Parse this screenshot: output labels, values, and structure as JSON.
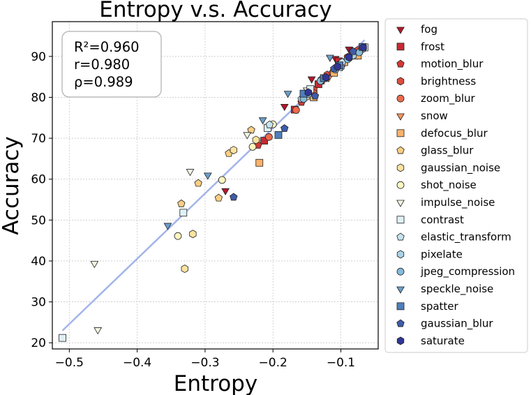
{
  "chart_data": {
    "type": "scatter",
    "title": "Entropy  v.s.  Accuracy",
    "xlabel": "Entropy",
    "ylabel": "Accuracy",
    "xlim": [
      -0.525,
      -0.045
    ],
    "ylim": [
      18.5,
      98.5
    ],
    "xticks": [
      -0.5,
      -0.4,
      -0.3,
      -0.2,
      -0.1
    ],
    "xtick_labels": [
      "−0.5",
      "−0.4",
      "−0.3",
      "−0.2",
      "−0.1"
    ],
    "yticks": [
      20,
      30,
      40,
      50,
      60,
      70,
      80,
      90
    ],
    "ytick_labels": [
      "20",
      "30",
      "40",
      "50",
      "60",
      "70",
      "80",
      "90"
    ],
    "grid": true,
    "fit_line": {
      "color": "#a2b4ea",
      "x": [
        -0.51,
        -0.065
      ],
      "y": [
        23.0,
        94.0
      ]
    },
    "stats": [
      "R²=0.960",
      "r=0.980",
      "ρ=0.989"
    ],
    "legend_position": "outside-right",
    "series": [
      {
        "name": "fog",
        "marker": "triangle-down",
        "color": "#b2182b",
        "points": [
          [
            -0.27,
            57.2
          ],
          [
            -0.183,
            77.8
          ],
          [
            -0.143,
            84.5
          ],
          [
            -0.108,
            89.5
          ],
          [
            -0.088,
            91.8
          ]
        ]
      },
      {
        "name": "frost",
        "marker": "square",
        "color": "#c62a32",
        "points": [
          [
            -0.213,
            69.4
          ],
          [
            -0.168,
            77.0
          ],
          [
            -0.133,
            83.2
          ],
          [
            -0.103,
            88.8
          ],
          [
            -0.083,
            91.0
          ]
        ]
      },
      {
        "name": "motion_blur",
        "marker": "pentagon",
        "color": "#d03a36",
        "points": [
          [
            -0.222,
            68.3
          ],
          [
            -0.158,
            78.8
          ],
          [
            -0.128,
            84.0
          ],
          [
            -0.098,
            88.4
          ],
          [
            -0.078,
            90.8
          ]
        ]
      },
      {
        "name": "brightness",
        "marker": "hexagon",
        "color": "#dd4f3d",
        "points": [
          [
            -0.14,
            81.8
          ],
          [
            -0.12,
            85.5
          ],
          [
            -0.1,
            88.2
          ],
          [
            -0.09,
            89.8
          ],
          [
            -0.075,
            91.5
          ]
        ]
      },
      {
        "name": "zoom_blur",
        "marker": "circle",
        "color": "#ec6b4d",
        "points": [
          [
            -0.206,
            70.3
          ],
          [
            -0.166,
            76.9
          ],
          [
            -0.14,
            81.0
          ],
          [
            -0.112,
            86.0
          ],
          [
            -0.088,
            89.6
          ]
        ]
      },
      {
        "name": "snow",
        "marker": "triangle-down",
        "color": "#f6955e",
        "points": [
          [
            -0.142,
            80.3
          ],
          [
            -0.118,
            84.8
          ],
          [
            -0.098,
            87.5
          ],
          [
            -0.076,
            90.3
          ]
        ]
      },
      {
        "name": "defocus_blur",
        "marker": "square",
        "color": "#f9b36b",
        "points": [
          [
            -0.22,
            64.0
          ],
          [
            -0.14,
            80.0
          ],
          [
            -0.11,
            86.0
          ],
          [
            -0.095,
            88.6
          ],
          [
            -0.075,
            90.2
          ]
        ]
      },
      {
        "name": "glass_blur",
        "marker": "pentagon",
        "color": "#fbce83",
        "points": [
          [
            -0.335,
            54.0
          ],
          [
            -0.31,
            59.0
          ],
          [
            -0.265,
            66.3
          ],
          [
            -0.232,
            72.0
          ],
          [
            -0.28,
            55.4
          ]
        ]
      },
      {
        "name": "gaussian_noise",
        "marker": "hexagon",
        "color": "#fde3a0",
        "points": [
          [
            -0.33,
            38.1
          ],
          [
            -0.318,
            46.6
          ],
          [
            -0.258,
            67.1
          ],
          [
            -0.225,
            69.6
          ],
          [
            -0.155,
            80.4
          ]
        ]
      },
      {
        "name": "shot_noise",
        "marker": "circle",
        "color": "#fef6c1",
        "points": [
          [
            -0.34,
            46.1
          ],
          [
            -0.275,
            59.8
          ],
          [
            -0.23,
            67.9
          ],
          [
            -0.2,
            73.4
          ],
          [
            -0.15,
            80.2
          ]
        ]
      },
      {
        "name": "impulse_noise",
        "marker": "triangle-down",
        "color": "#f3f8e2",
        "points": [
          [
            -0.463,
            39.4
          ],
          [
            -0.458,
            23.2
          ],
          [
            -0.322,
            61.9
          ],
          [
            -0.238,
            70.9
          ],
          [
            -0.15,
            81.8
          ]
        ]
      },
      {
        "name": "contrast",
        "marker": "square",
        "color": "#dff0f6",
        "points": [
          [
            -0.51,
            21.2
          ],
          [
            -0.332,
            51.8
          ],
          [
            -0.208,
            72.5
          ],
          [
            -0.145,
            82.0
          ],
          [
            -0.065,
            92.2
          ]
        ]
      },
      {
        "name": "elastic_transform",
        "marker": "pentagon",
        "color": "#c7e3ee",
        "points": [
          [
            -0.205,
            73.3
          ],
          [
            -0.158,
            79.6
          ],
          [
            -0.128,
            84.5
          ],
          [
            -0.098,
            88.6
          ],
          [
            -0.072,
            91.2
          ]
        ]
      },
      {
        "name": "pixelate",
        "marker": "hexagon",
        "color": "#a8d3e6",
        "points": [
          [
            -0.148,
            80.8
          ],
          [
            -0.122,
            84.8
          ],
          [
            -0.1,
            87.4
          ],
          [
            -0.082,
            90.2
          ],
          [
            -0.068,
            91.8
          ]
        ]
      },
      {
        "name": "jpeg_compression",
        "marker": "circle",
        "color": "#86bbdb",
        "points": [
          [
            -0.155,
            79.6
          ],
          [
            -0.13,
            84.0
          ],
          [
            -0.108,
            86.8
          ],
          [
            -0.09,
            89.3
          ],
          [
            -0.073,
            91.0
          ]
        ]
      },
      {
        "name": "speckle_noise",
        "marker": "triangle-down",
        "color": "#6a9fcc",
        "points": [
          [
            -0.355,
            48.7
          ],
          [
            -0.296,
            61.0
          ],
          [
            -0.215,
            74.5
          ],
          [
            -0.178,
            81.0
          ],
          [
            -0.116,
            89.8
          ]
        ]
      },
      {
        "name": "spatter",
        "marker": "square",
        "color": "#4f7fbc",
        "points": [
          [
            -0.192,
            70.8
          ],
          [
            -0.155,
            80.9
          ],
          [
            -0.125,
            84.7
          ],
          [
            -0.102,
            87.8
          ],
          [
            -0.068,
            92.3
          ]
        ]
      },
      {
        "name": "gaussian_blur",
        "marker": "pentagon",
        "color": "#3f5ca8",
        "points": [
          [
            -0.258,
            55.6
          ],
          [
            -0.183,
            72.4
          ],
          [
            -0.138,
            80.3
          ],
          [
            -0.11,
            87.0
          ],
          [
            -0.082,
            91.2
          ]
        ]
      },
      {
        "name": "saturate",
        "marker": "hexagon",
        "color": "#313695",
        "points": [
          [
            -0.148,
            81.2
          ],
          [
            -0.122,
            84.9
          ],
          [
            -0.105,
            87.5
          ],
          [
            -0.088,
            89.8
          ],
          [
            -0.067,
            92.2
          ]
        ]
      }
    ]
  }
}
